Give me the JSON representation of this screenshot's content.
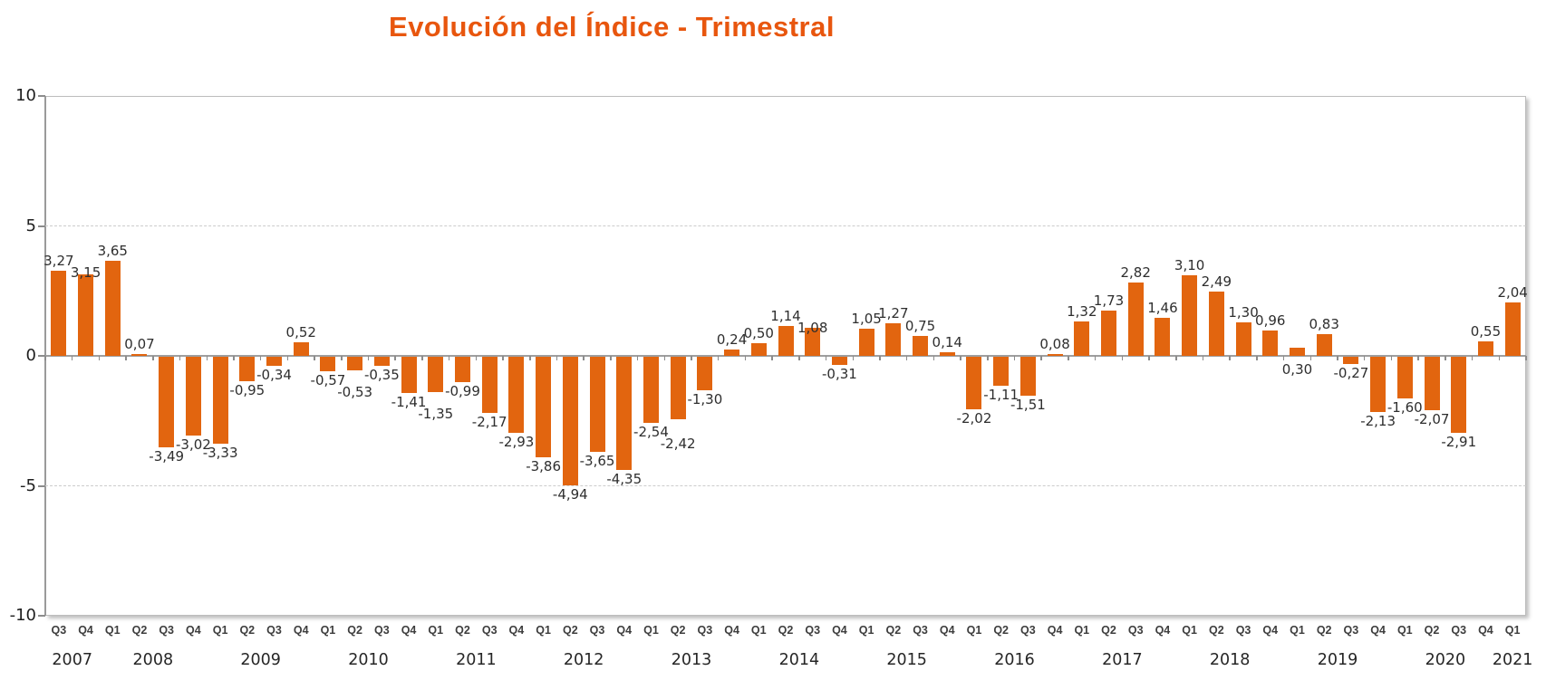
{
  "title": "Evolución del Índice - Trimestral",
  "colors": {
    "title": "#E8560E",
    "bar": "#E2650F",
    "value_label": "#2E2E2E",
    "axis_line": "#9A9A9A",
    "gridline": "#CCCCCC",
    "tick_text": "#1F1F1F"
  },
  "chart_data": {
    "type": "bar",
    "title": "Evolución del Índice - Trimestral",
    "xlabel": "",
    "ylabel": "",
    "ylim": [
      -10,
      10
    ],
    "yticks": [
      10,
      5,
      0,
      -5,
      -10
    ],
    "grid": "dashed horizontal gridlines at 5 and -5, solid category axis at 0, outer plot border",
    "legend": "none",
    "decimal_separator": ",",
    "value_labels_shown": true,
    "label_below_axis_indices": [
      46
    ],
    "points": [
      {
        "q": "Q3",
        "year": 2007,
        "v": 3.27
      },
      {
        "q": "Q4",
        "year": 2007,
        "v": 3.15
      },
      {
        "q": "Q1",
        "year": 2008,
        "v": 3.65
      },
      {
        "q": "Q2",
        "year": 2008,
        "v": 0.07
      },
      {
        "q": "Q3",
        "year": 2008,
        "v": -3.49
      },
      {
        "q": "Q4",
        "year": 2008,
        "v": -3.02
      },
      {
        "q": "Q1",
        "year": 2009,
        "v": -3.33
      },
      {
        "q": "Q2",
        "year": 2009,
        "v": -0.95
      },
      {
        "q": "Q3",
        "year": 2009,
        "v": -0.34
      },
      {
        "q": "Q4",
        "year": 2009,
        "v": 0.52
      },
      {
        "q": "Q1",
        "year": 2010,
        "v": -0.57
      },
      {
        "q": "Q2",
        "year": 2010,
        "v": -0.53
      },
      {
        "q": "Q3",
        "year": 2010,
        "v": -0.35
      },
      {
        "q": "Q4",
        "year": 2010,
        "v": -1.41
      },
      {
        "q": "Q1",
        "year": 2011,
        "v": -1.35
      },
      {
        "q": "Q2",
        "year": 2011,
        "v": -0.99
      },
      {
        "q": "Q3",
        "year": 2011,
        "v": -2.17
      },
      {
        "q": "Q4",
        "year": 2011,
        "v": -2.93
      },
      {
        "q": "Q1",
        "year": 2012,
        "v": -3.86
      },
      {
        "q": "Q2",
        "year": 2012,
        "v": -4.94
      },
      {
        "q": "Q3",
        "year": 2012,
        "v": -3.65
      },
      {
        "q": "Q4",
        "year": 2012,
        "v": -4.35
      },
      {
        "q": "Q1",
        "year": 2013,
        "v": -2.54
      },
      {
        "q": "Q2",
        "year": 2013,
        "v": -2.42
      },
      {
        "q": "Q3",
        "year": 2013,
        "v": -1.3
      },
      {
        "q": "Q4",
        "year": 2013,
        "v": 0.24
      },
      {
        "q": "Q1",
        "year": 2014,
        "v": 0.5
      },
      {
        "q": "Q2",
        "year": 2014,
        "v": 1.14
      },
      {
        "q": "Q3",
        "year": 2014,
        "v": 1.08
      },
      {
        "q": "Q4",
        "year": 2014,
        "v": -0.31
      },
      {
        "q": "Q1",
        "year": 2015,
        "v": 1.05
      },
      {
        "q": "Q2",
        "year": 2015,
        "v": 1.27
      },
      {
        "q": "Q3",
        "year": 2015,
        "v": 0.75
      },
      {
        "q": "Q4",
        "year": 2015,
        "v": 0.14
      },
      {
        "q": "Q1",
        "year": 2016,
        "v": -2.02
      },
      {
        "q": "Q2",
        "year": 2016,
        "v": -1.11
      },
      {
        "q": "Q3",
        "year": 2016,
        "v": -1.51
      },
      {
        "q": "Q4",
        "year": 2016,
        "v": 0.08
      },
      {
        "q": "Q1",
        "year": 2017,
        "v": 1.32
      },
      {
        "q": "Q2",
        "year": 2017,
        "v": 1.73
      },
      {
        "q": "Q3",
        "year": 2017,
        "v": 2.82
      },
      {
        "q": "Q4",
        "year": 2017,
        "v": 1.46
      },
      {
        "q": "Q1",
        "year": 2018,
        "v": 3.1
      },
      {
        "q": "Q2",
        "year": 2018,
        "v": 2.49
      },
      {
        "q": "Q3",
        "year": 2018,
        "v": 1.3
      },
      {
        "q": "Q4",
        "year": 2018,
        "v": 0.96
      },
      {
        "q": "Q1",
        "year": 2019,
        "v": 0.3
      },
      {
        "q": "Q2",
        "year": 2019,
        "v": 0.83
      },
      {
        "q": "Q3",
        "year": 2019,
        "v": -0.27
      },
      {
        "q": "Q4",
        "year": 2019,
        "v": -2.13
      },
      {
        "q": "Q1",
        "year": 2020,
        "v": -1.6
      },
      {
        "q": "Q2",
        "year": 2020,
        "v": -2.07
      },
      {
        "q": "Q3",
        "year": 2020,
        "v": -2.91
      },
      {
        "q": "Q4",
        "year": 2020,
        "v": 0.55
      },
      {
        "q": "Q1",
        "year": 2021,
        "v": 2.04
      }
    ]
  }
}
